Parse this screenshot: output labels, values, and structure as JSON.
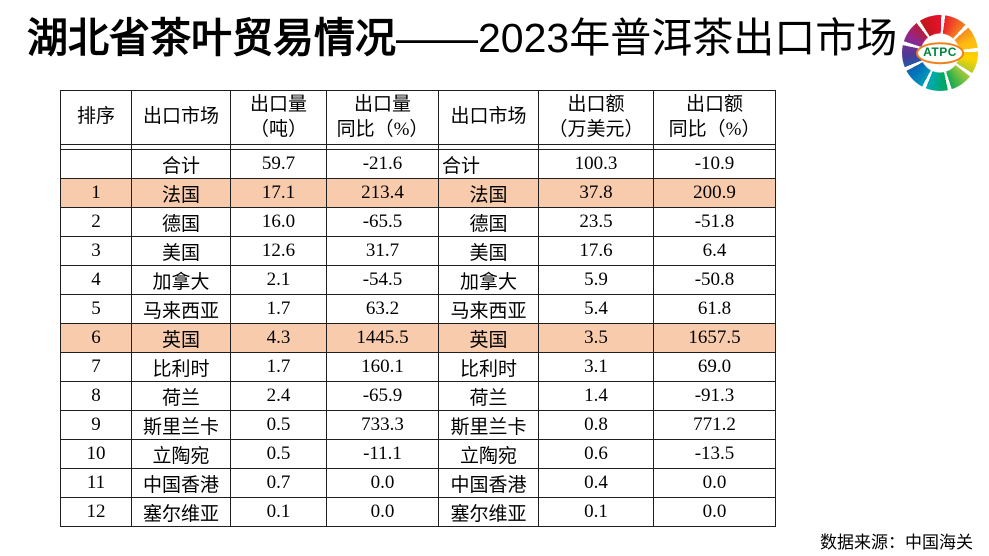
{
  "title": {
    "bold_part": "湖北省茶叶贸易情况",
    "light_part": "——2023年普洱茶出口市场"
  },
  "logo": {
    "label": "ATPC"
  },
  "table": {
    "headers": [
      "排序",
      "出口市场",
      "出口量\n（吨）",
      "出口量\n同比（%）",
      "出口市场",
      "出口额\n（万美元）",
      "出口额\n同比（%）"
    ],
    "rows": [
      {
        "cells": [
          "",
          "合计",
          "59.7",
          "-21.6",
          "合计",
          "100.3",
          "-10.9"
        ],
        "highlight": false,
        "market2_left": true
      },
      {
        "cells": [
          "1",
          "法国",
          "17.1",
          "213.4",
          "法国",
          "37.8",
          "200.9"
        ],
        "highlight": true
      },
      {
        "cells": [
          "2",
          "德国",
          "16.0",
          "-65.5",
          "德国",
          "23.5",
          "-51.8"
        ],
        "highlight": false
      },
      {
        "cells": [
          "3",
          "美国",
          "12.6",
          "31.7",
          "美国",
          "17.6",
          "6.4"
        ],
        "highlight": false
      },
      {
        "cells": [
          "4",
          "加拿大",
          "2.1",
          "-54.5",
          "加拿大",
          "5.9",
          "-50.8"
        ],
        "highlight": false
      },
      {
        "cells": [
          "5",
          "马来西亚",
          "1.7",
          "63.2",
          "马来西亚",
          "5.4",
          "61.8"
        ],
        "highlight": false
      },
      {
        "cells": [
          "6",
          "英国",
          "4.3",
          "1445.5",
          "英国",
          "3.5",
          "1657.5"
        ],
        "highlight": true
      },
      {
        "cells": [
          "7",
          "比利时",
          "1.7",
          "160.1",
          "比利时",
          "3.1",
          "69.0"
        ],
        "highlight": false
      },
      {
        "cells": [
          "8",
          "荷兰",
          "2.4",
          "-65.9",
          "荷兰",
          "1.4",
          "-91.3"
        ],
        "highlight": false
      },
      {
        "cells": [
          "9",
          "斯里兰卡",
          "0.5",
          "733.3",
          "斯里兰卡",
          "0.8",
          "771.2"
        ],
        "highlight": false
      },
      {
        "cells": [
          "10",
          "立陶宛",
          "0.5",
          "-11.1",
          "立陶宛",
          "0.6",
          "-13.5"
        ],
        "highlight": false
      },
      {
        "cells": [
          "11",
          "中国香港",
          "0.7",
          "0.0",
          "中国香港",
          "0.4",
          "0.0"
        ],
        "highlight": false
      },
      {
        "cells": [
          "12",
          "塞尔维亚",
          "0.1",
          "0.0",
          "塞尔维亚",
          "0.1",
          "0.0"
        ],
        "highlight": false
      }
    ]
  },
  "footer": {
    "source": "数据来源：中国海关"
  },
  "colors": {
    "highlight_row": "#F8CBAD",
    "table_border": "#1f1f1f",
    "logo_text_color": "#00843d",
    "logo_ellipse_border": "#f0801a",
    "logo_rainbow": [
      "#c4161c",
      "#e8112d",
      "#f36f21",
      "#fdb913",
      "#ffd400",
      "#8dc63f",
      "#00a651",
      "#00aab4",
      "#0072bc",
      "#4b3b96",
      "#92278f",
      "#c4161c"
    ]
  }
}
